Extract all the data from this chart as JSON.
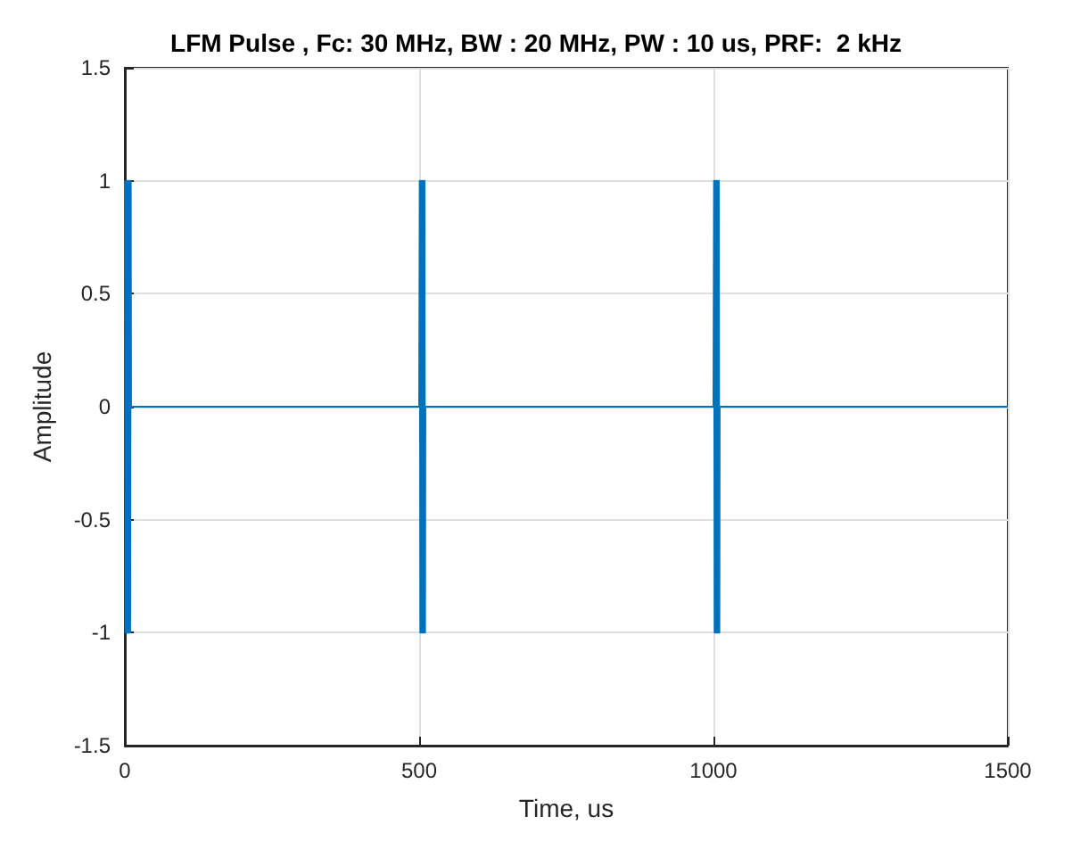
{
  "chart_data": {
    "type": "line",
    "title": "LFM Pulse , Fc: 30 MHz, BW : 20 MHz, PW : 10 us, PRF:  2 kHz",
    "xlabel": "Time, us",
    "ylabel": "Amplitude",
    "x": [
      0,
      1,
      2,
      3,
      4,
      5,
      6,
      7,
      8,
      9,
      10,
      10.5,
      500,
      501,
      502,
      503,
      504,
      505,
      506,
      507,
      508,
      509,
      510,
      510.5,
      1000,
      1001,
      1002,
      1003,
      1004,
      1005,
      1006,
      1007,
      1008,
      1009,
      1010,
      1010.5,
      1500
    ],
    "series": [
      {
        "color": "#0072bd",
        "values": [
          1,
          -1,
          1,
          -1,
          1,
          -1,
          1,
          -1,
          1,
          -1,
          1,
          0,
          0,
          1,
          -1,
          1,
          -1,
          1,
          -1,
          1,
          -1,
          1,
          -1,
          0,
          0,
          1,
          -1,
          1,
          -1,
          1,
          -1,
          1,
          -1,
          1,
          -1,
          0,
          0
        ]
      }
    ],
    "xlim": [
      0,
      1500
    ],
    "xticks": [
      0,
      500,
      1000,
      1500
    ],
    "ylim": [
      -1.5,
      1.5
    ],
    "yticks": [
      -1.5,
      -1,
      -0.5,
      0,
      0.5,
      1,
      1.5
    ],
    "grid": true,
    "marker": "none",
    "line_style": "solid"
  }
}
